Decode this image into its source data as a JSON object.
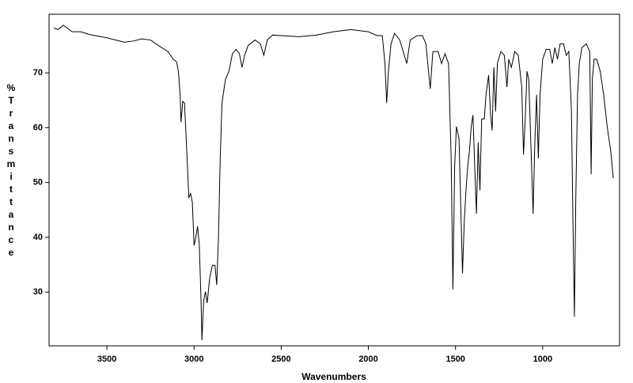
{
  "chart_data": {
    "type": "line",
    "xlabel": "Wavenumbers",
    "ylabel": "% Transmittance",
    "xlim": [
      3832,
      559
    ],
    "ylim": [
      20.2,
      80.7
    ],
    "xticks": [
      3500,
      3000,
      2500,
      2000,
      1500,
      1000
    ],
    "yticks": [
      30,
      40,
      50,
      60,
      70
    ],
    "color": "#000000",
    "x": [
      3805,
      3780,
      3750,
      3700,
      3650,
      3600,
      3500,
      3400,
      3350,
      3300,
      3250,
      3200,
      3150,
      3120,
      3100,
      3090,
      3080,
      3075,
      3065,
      3055,
      3040,
      3030,
      3020,
      3010,
      3000,
      2990,
      2980,
      2970,
      2960,
      2955,
      2945,
      2935,
      2925,
      2910,
      2895,
      2880,
      2870,
      2860,
      2850,
      2840,
      2820,
      2800,
      2780,
      2760,
      2740,
      2725,
      2710,
      2690,
      2650,
      2620,
      2600,
      2580,
      2550,
      2500,
      2400,
      2300,
      2200,
      2100,
      2000,
      1950,
      1920,
      1905,
      1895,
      1885,
      1870,
      1850,
      1820,
      1800,
      1780,
      1760,
      1720,
      1690,
      1670,
      1655,
      1645,
      1630,
      1600,
      1580,
      1560,
      1540,
      1525,
      1515,
      1505,
      1495,
      1480,
      1470,
      1460,
      1450,
      1440,
      1430,
      1420,
      1410,
      1400,
      1390,
      1380,
      1370,
      1360,
      1350,
      1335,
      1325,
      1310,
      1300,
      1290,
      1280,
      1270,
      1260,
      1240,
      1220,
      1205,
      1195,
      1180,
      1160,
      1140,
      1120,
      1110,
      1100,
      1090,
      1080,
      1065,
      1055,
      1045,
      1035,
      1025,
      1015,
      1000,
      980,
      960,
      945,
      930,
      915,
      900,
      880,
      865,
      850,
      835,
      825,
      818,
      810,
      800,
      790,
      775,
      750,
      730,
      722,
      715,
      705,
      690,
      670,
      650,
      630,
      610,
      595
    ],
    "values": [
      78.2,
      77.9,
      78.7,
      77.5,
      77.5,
      77,
      76.4,
      75.6,
      75.8,
      76.2,
      76,
      74.9,
      73.9,
      72.5,
      72,
      70.3,
      66,
      61,
      64.8,
      64.5,
      54.4,
      47.2,
      48,
      46.4,
      38.5,
      40,
      42,
      38.5,
      28.4,
      21.2,
      28.4,
      30.1,
      28,
      32.7,
      34.9,
      34.9,
      31.3,
      40,
      54.4,
      64.5,
      68.8,
      70.3,
      73.5,
      74.3,
      73.5,
      71,
      73.2,
      75,
      76,
      75.3,
      73.2,
      76,
      76.9,
      76.8,
      76.6,
      76.9,
      77.5,
      77.9,
      77.5,
      76.8,
      76.8,
      71.7,
      64.5,
      70.3,
      75.3,
      77.2,
      76,
      73.9,
      71.7,
      76,
      76.8,
      76.8,
      75.3,
      70.3,
      67.1,
      73.9,
      73.9,
      71.7,
      73.5,
      71.7,
      54.4,
      30.5,
      53,
      60.2,
      58,
      45.7,
      33.4,
      42.8,
      48.6,
      53,
      55.8,
      60.2,
      62.3,
      53,
      44.3,
      57.3,
      48.6,
      61.6,
      61.6,
      66,
      69.6,
      63,
      59.5,
      71,
      63,
      71.7,
      73.9,
      73.2,
      67.4,
      72.5,
      71,
      73.9,
      73.2,
      67.4,
      55.1,
      61.6,
      70.3,
      68.8,
      54.4,
      44.3,
      57.3,
      66,
      54.4,
      66,
      72.5,
      74.3,
      74.3,
      71.7,
      74.6,
      72.5,
      75.3,
      75.3,
      73.2,
      73.9,
      63,
      40,
      25.5,
      47.2,
      66,
      71.7,
      74.6,
      75.3,
      73.9,
      51.5,
      68.8,
      72.5,
      72.5,
      70.3,
      66,
      60.2,
      55.8,
      50.8
    ]
  }
}
